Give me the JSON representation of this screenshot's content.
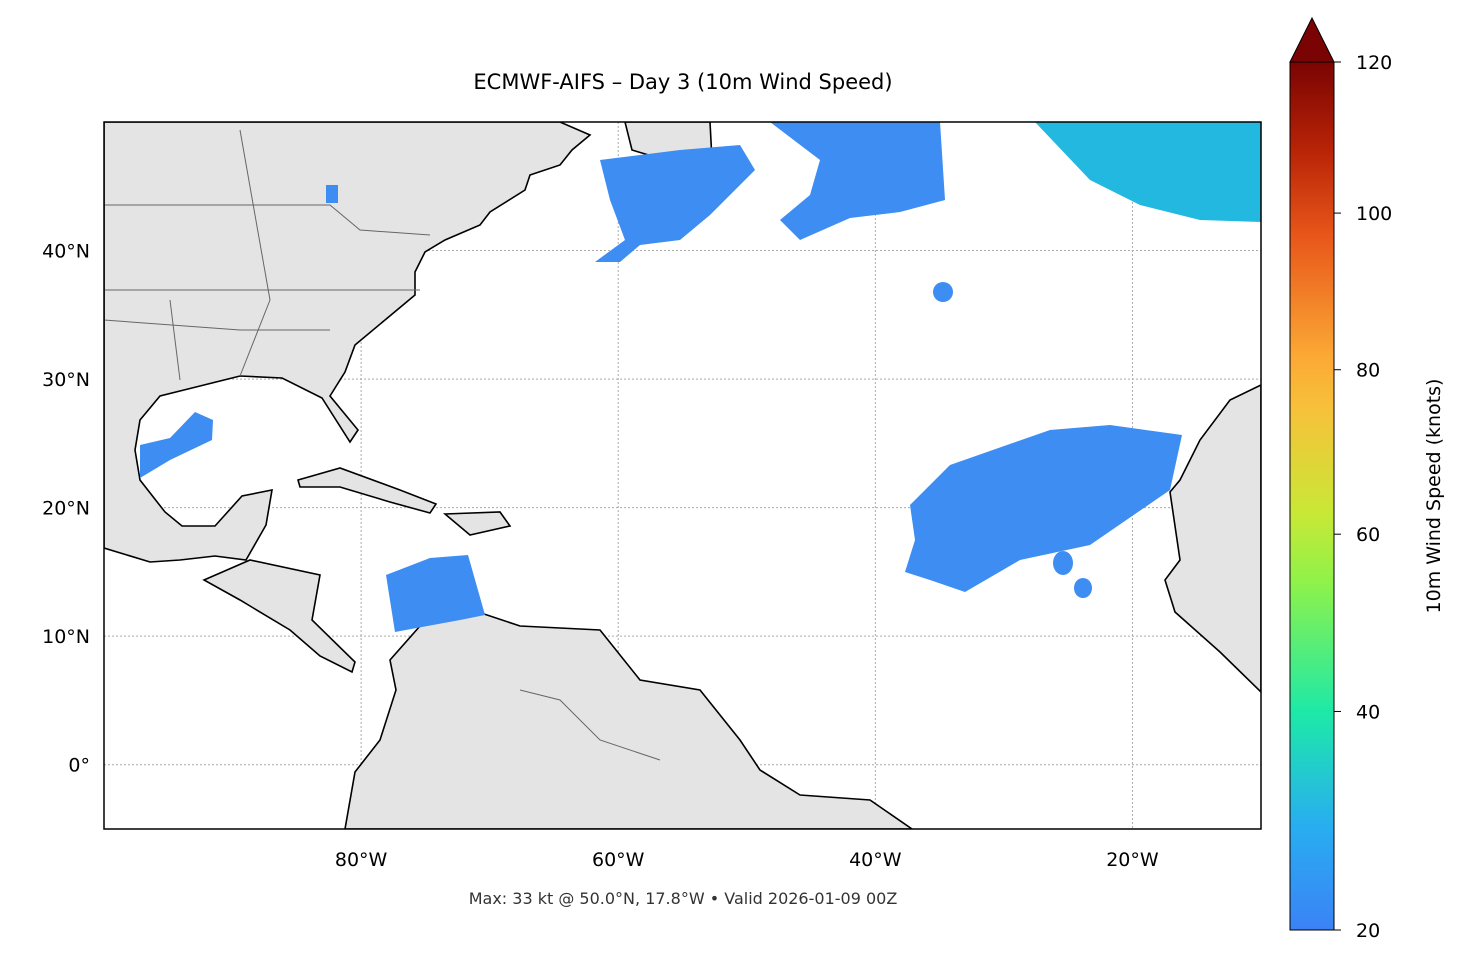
{
  "map": {
    "title": "ECMWF-AIFS – Day 3 (10m Wind Speed)",
    "footer": "Max: 33 kt @ 50.0°N, 17.8°W • Valid 2026-01-09 00Z",
    "xlim": [
      -100,
      -10
    ],
    "ylim": [
      -5,
      50
    ],
    "xticks": [
      {
        "value": -80,
        "label": "80°W"
      },
      {
        "value": -60,
        "label": "60°W"
      },
      {
        "value": -40,
        "label": "40°W"
      },
      {
        "value": -20,
        "label": "20°W"
      }
    ],
    "yticks": [
      {
        "value": 0,
        "label": "0°"
      },
      {
        "value": 10,
        "label": "10°N"
      },
      {
        "value": 20,
        "label": "20°N"
      },
      {
        "value": 30,
        "label": "30°N"
      },
      {
        "value": 40,
        "label": "40°N"
      }
    ],
    "colorbar": {
      "label": "10m Wind Speed (knots)",
      "lim": [
        20,
        120
      ],
      "ticks": [
        20,
        40,
        60,
        80,
        100,
        120
      ]
    }
  }
}
